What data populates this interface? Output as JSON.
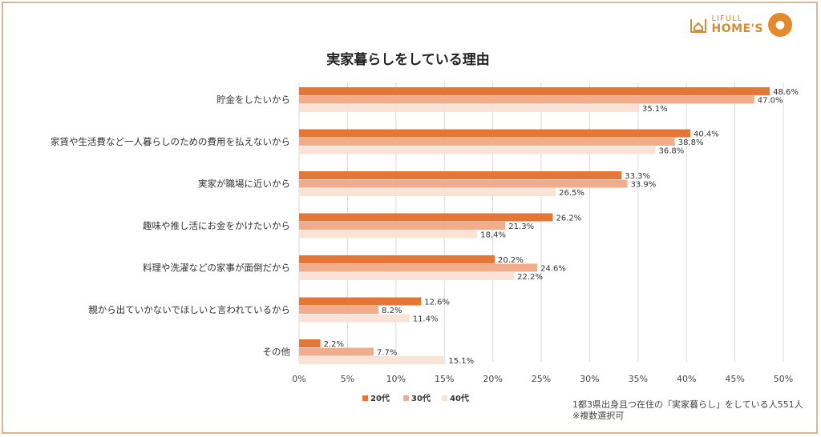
{
  "logo": {
    "line1": "LIFULL",
    "line2": "HOME'S"
  },
  "colors": {
    "s20": "#e67636",
    "s30": "#f1ad8b",
    "s40": "#fae3d6",
    "frame": "#d9b793",
    "grid": "#d9d9d9",
    "text": "#333333"
  },
  "chart_data": {
    "type": "bar",
    "orientation": "horizontal",
    "title": "実家暮らしをしている理由",
    "categories": [
      "貯金をしたいから",
      "家賃や生活費など一人暮らしのための費用を払えないから",
      "実家が職場に近いから",
      "趣味や推し活にお金をかけたいから",
      "料理や洗濯などの家事が面倒だから",
      "親から出ていかないでほしいと言われているから",
      "その他"
    ],
    "series": [
      {
        "name": "20代",
        "values": [
          48.6,
          40.4,
          33.3,
          26.2,
          20.2,
          12.6,
          2.2
        ]
      },
      {
        "name": "30代",
        "values": [
          47.0,
          38.8,
          33.9,
          21.3,
          24.6,
          8.2,
          7.7
        ]
      },
      {
        "name": "40代",
        "values": [
          35.1,
          36.8,
          26.5,
          18.4,
          22.2,
          11.4,
          15.1
        ]
      }
    ],
    "value_labels": [
      [
        "48.6%",
        "40.4%",
        "33.3%",
        "26.2%",
        "20.2%",
        "12.6%",
        "2.2%"
      ],
      [
        "47.0%",
        "38.8%",
        "33.9%",
        "21.3%",
        "24.6%",
        "8.2%",
        "7.7%"
      ],
      [
        "35.1%",
        "36.8%",
        "26.5%",
        "18.4%",
        "22.2%",
        "11.4%",
        "15.1%"
      ]
    ],
    "x_ticks": [
      "0%",
      "5%",
      "10%",
      "15%",
      "20%",
      "25%",
      "30%",
      "35%",
      "40%",
      "45%",
      "50%"
    ],
    "xlim": [
      0,
      50
    ],
    "grid": true,
    "legend_position": "bottom"
  },
  "note": {
    "line1": "1都3県出身且つ在住の「実家暮らし」をしている人551人",
    "line2": "※複数選択可"
  }
}
